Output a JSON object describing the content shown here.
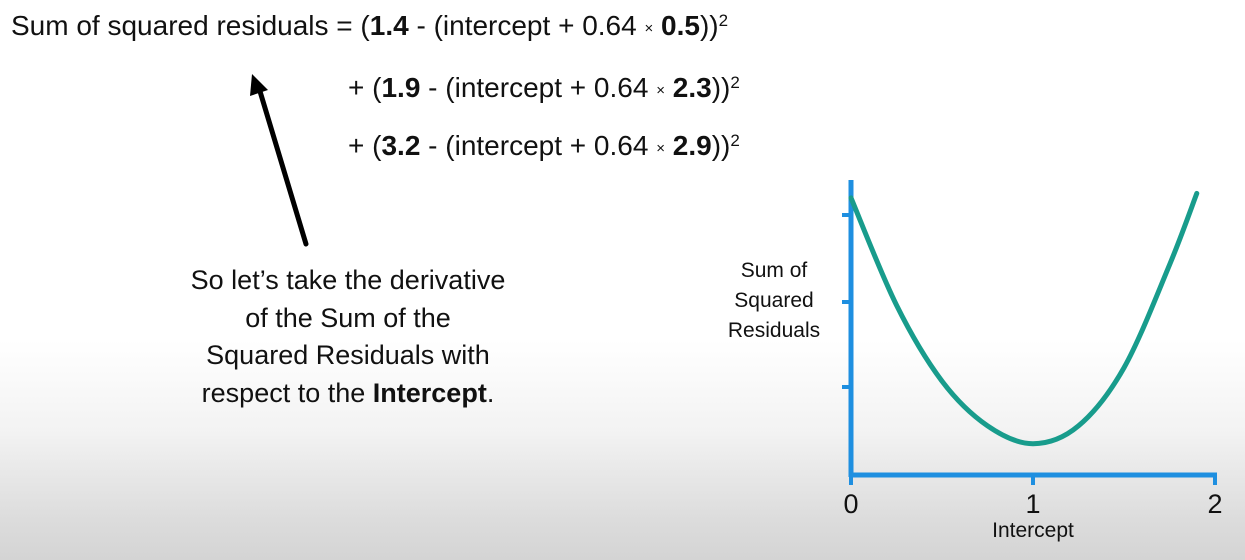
{
  "equation": {
    "line1": {
      "lhs": "Sum of squared residuals = (",
      "obs": "1.4",
      "mid": " - (intercept + 0.64 ",
      "times": "×",
      "x": "0.5",
      "close": "))",
      "exp": "2"
    },
    "line2": {
      "lead": "+ (",
      "obs": "1.9",
      "mid": " - (intercept + 0.64 ",
      "times": "×",
      "x": "2.3",
      "close": "))",
      "exp": "2"
    },
    "line3": {
      "lead": "+ (",
      "obs": "3.2",
      "mid": " - (intercept + 0.64 ",
      "times": "×",
      "x": "2.9",
      "close": "))",
      "exp": "2"
    }
  },
  "note": {
    "line1": "So let’s take the derivative",
    "line2": "of the Sum of the",
    "line3": "Squared Residuals with",
    "line4_pre": "respect to the ",
    "line4_bold": "Intercept",
    "line4_post": "."
  },
  "chart_data": {
    "type": "line",
    "xlabel": "Intercept",
    "ylabel_lines": [
      "Sum of",
      "Squared",
      "Residuals"
    ],
    "x_ticks": [
      0,
      1,
      2
    ],
    "xlim": [
      0,
      2
    ],
    "grid": false,
    "axis_color": "#1e8fe0",
    "curve_color": "#189c8c",
    "series": [
      {
        "x": [
          0,
          0.25,
          0.5,
          0.75,
          1.0,
          1.25,
          1.5,
          1.75,
          1.9
        ],
        "values": [
          3.1,
          1.9,
          1.05,
          0.55,
          0.35,
          0.55,
          1.2,
          2.35,
          3.15
        ]
      }
    ],
    "ylim": [
      0,
      3.3
    ]
  }
}
